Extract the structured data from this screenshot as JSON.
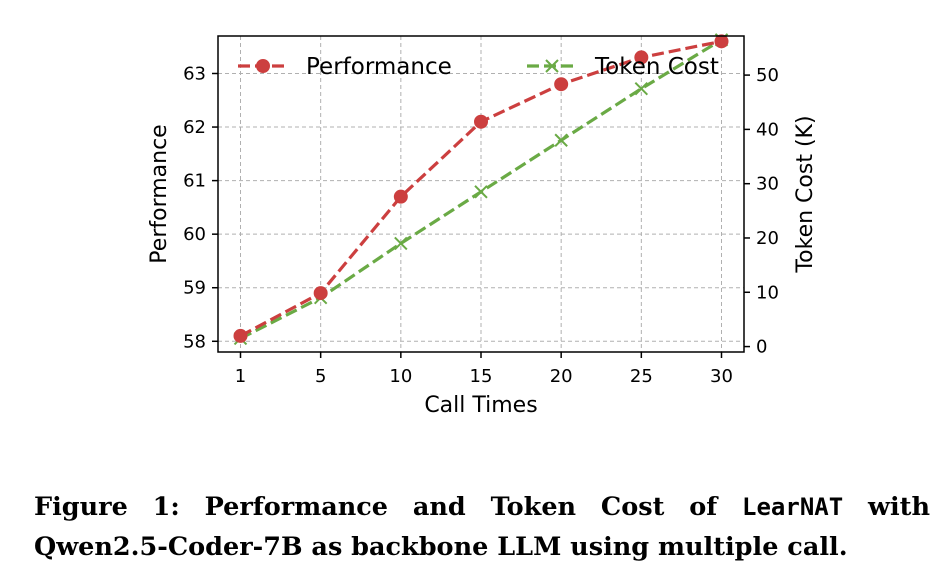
{
  "chart_data": {
    "type": "line",
    "x": [
      1,
      5,
      10,
      15,
      20,
      25,
      30
    ],
    "x_tick_labels": [
      "1",
      "5",
      "10",
      "15",
      "20",
      "25",
      "30"
    ],
    "xlabel": "Call Times",
    "ylabel": "Performance",
    "y2label": "Token Cost (K)",
    "ylim": [
      57.8,
      63.7
    ],
    "y2lim": [
      -1.0,
      57.2
    ],
    "y_ticks": [
      58,
      59,
      60,
      61,
      62,
      63
    ],
    "y2_ticks": [
      0,
      10,
      20,
      30,
      40,
      50
    ],
    "grid": true,
    "legend": "top",
    "series": [
      {
        "name": "Performance",
        "axis": "left",
        "color": "#cc3f3f",
        "marker": "circle",
        "linestyle": "dashed",
        "values": [
          58.1,
          58.9,
          60.7,
          62.1,
          62.8,
          63.3,
          63.6
        ]
      },
      {
        "name": "Token Cost",
        "axis": "right",
        "color": "#6aaa45",
        "marker": "x",
        "linestyle": "dashed",
        "values": [
          1.5,
          9.0,
          19.0,
          28.5,
          38.0,
          47.5,
          56.5
        ]
      }
    ]
  },
  "caption": {
    "prefix": "Figure 1: Performance and Token Cost of ",
    "method": "LearNAT",
    "suffix": " with Qwen2.5-Coder-7B as backbone LLM using multiple call."
  }
}
